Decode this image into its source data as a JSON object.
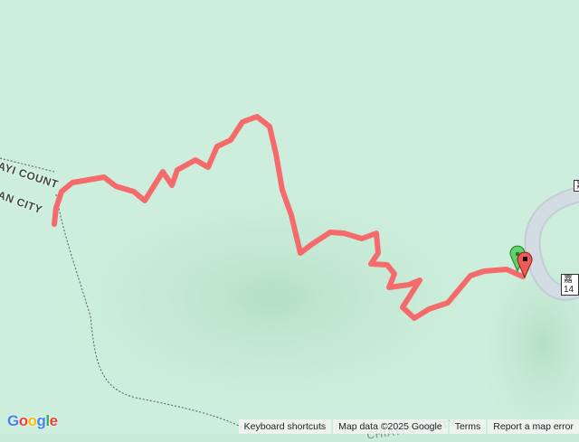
{
  "map": {
    "labels": {
      "county_1": "AYI COUNT",
      "city_1": "AN CITY",
      "county_bottom": "CHIAYI COUNTY"
    },
    "road_labels": {
      "road_1": "嘉14",
      "road_2": "嘉"
    },
    "track_color": "#f56a6a",
    "start_marker_color": "#5fd36b",
    "end_marker_color": "#f05a55"
  },
  "logo": {
    "letters": [
      "G",
      "o",
      "o",
      "g",
      "l",
      "e"
    ],
    "colors": [
      "#4285f4",
      "#ea4335",
      "#fbbc05",
      "#4285f4",
      "#34a853",
      "#ea4335"
    ]
  },
  "footer": {
    "keyboard_shortcuts": "Keyboard shortcuts",
    "map_data": "Map data ©2025 Google",
    "terms": "Terms",
    "report": "Report a map error"
  }
}
